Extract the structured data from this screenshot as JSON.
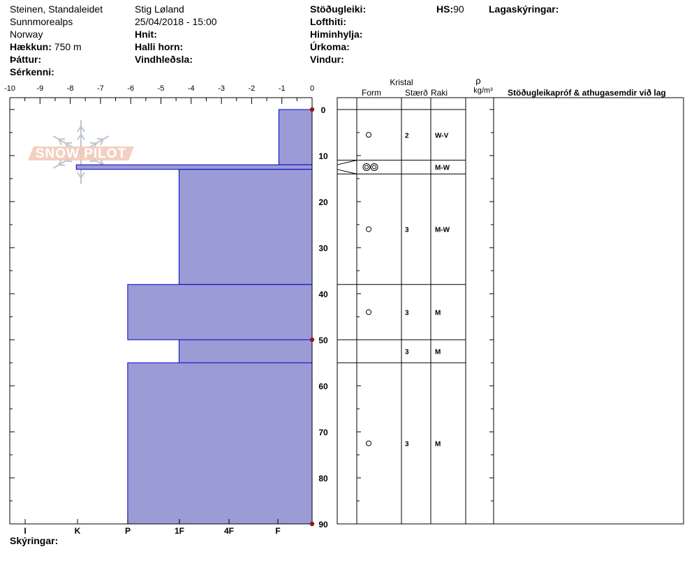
{
  "header": {
    "col1": {
      "location": "Steinen, Standaleidet",
      "range": "Sunnmorealps",
      "country": "Norway",
      "elevation_label": "Hækkun:",
      "elevation_value": "750 m",
      "aspect_label": "Þáttur:",
      "features_label": "Sérkenni:"
    },
    "col2": {
      "observer": "Stig Løland",
      "datetime": "25/04/2018 - 15:00",
      "coords_label": "Hnit:",
      "slope_label": "Halli horn:",
      "windload_label": "Vindhleðsla:"
    },
    "col3": {
      "stability_label": "Stöðugleiki:",
      "airtemp_label": "Lofthiti:",
      "sky_label": "Himinhylja:",
      "precip_label": "Úrkoma:",
      "wind_label": "Vindur:"
    },
    "hs_label": "HS:",
    "hs_value": "90",
    "layer_notes_label": "Lagaskýringar:"
  },
  "watermark": "SNOW PILOT",
  "table_headers": {
    "crystal": "Kristal",
    "form": "Form",
    "size": "Stærð",
    "wetness": "Raki",
    "density_symbol": "ρ",
    "density_unit": "kg/m³",
    "tests": "Stöðugleikapróf & athugasemdir við lag"
  },
  "footer": {
    "legend_label": "Skýringar:"
  },
  "chart_data": {
    "type": "snow_profile",
    "temperature_axis": {
      "ticks": [
        -10,
        -9,
        -8,
        -7,
        -6,
        -5,
        -4,
        -3,
        -2,
        -1,
        0
      ],
      "range": [
        -10,
        0
      ]
    },
    "hardness_axis": {
      "labels": [
        "I",
        "K",
        "P",
        "1F",
        "4F",
        "F"
      ]
    },
    "depth_axis": {
      "ticks": [
        0,
        10,
        20,
        30,
        40,
        50,
        60,
        70,
        80,
        90
      ],
      "range": [
        0,
        90
      ]
    },
    "hardness_profile": [
      {
        "top": 0,
        "bottom": 12,
        "hardness": -1.1
      },
      {
        "top": 12,
        "bottom": 13,
        "hardness": -7.8
      },
      {
        "top": 13,
        "bottom": 38,
        "hardness": -4.4
      },
      {
        "top": 38,
        "bottom": 50,
        "hardness": -6.1
      },
      {
        "top": 50,
        "bottom": 55,
        "hardness": -4.4
      },
      {
        "top": 55,
        "bottom": 90,
        "hardness": -6.1
      }
    ],
    "temperature_points": [
      {
        "depth": 0,
        "temp": 0
      },
      {
        "depth": 50,
        "temp": 0
      },
      {
        "depth": 90,
        "temp": 0
      }
    ],
    "layers": [
      {
        "top": 0,
        "bottom": 11,
        "form": "circle",
        "size": "2",
        "wetness": "W-V"
      },
      {
        "top": 11,
        "bottom": 14,
        "form": "double-circle",
        "size": "",
        "wetness": "M-W"
      },
      {
        "top": 14,
        "bottom": 38,
        "form": "circle",
        "size": "3",
        "wetness": "M-W"
      },
      {
        "top": 38,
        "bottom": 50,
        "form": "circle",
        "size": "3",
        "wetness": "M"
      },
      {
        "top": 50,
        "bottom": 55,
        "form": "",
        "size": "3",
        "wetness": "M"
      },
      {
        "top": 55,
        "bottom": 90,
        "form": "circle",
        "size": "3",
        "wetness": "M"
      }
    ],
    "colors": {
      "fill": "#9b9bd6",
      "stroke": "#0000c8",
      "temp_point": "#8b1a1a",
      "watermark": "#e8b49c"
    }
  }
}
